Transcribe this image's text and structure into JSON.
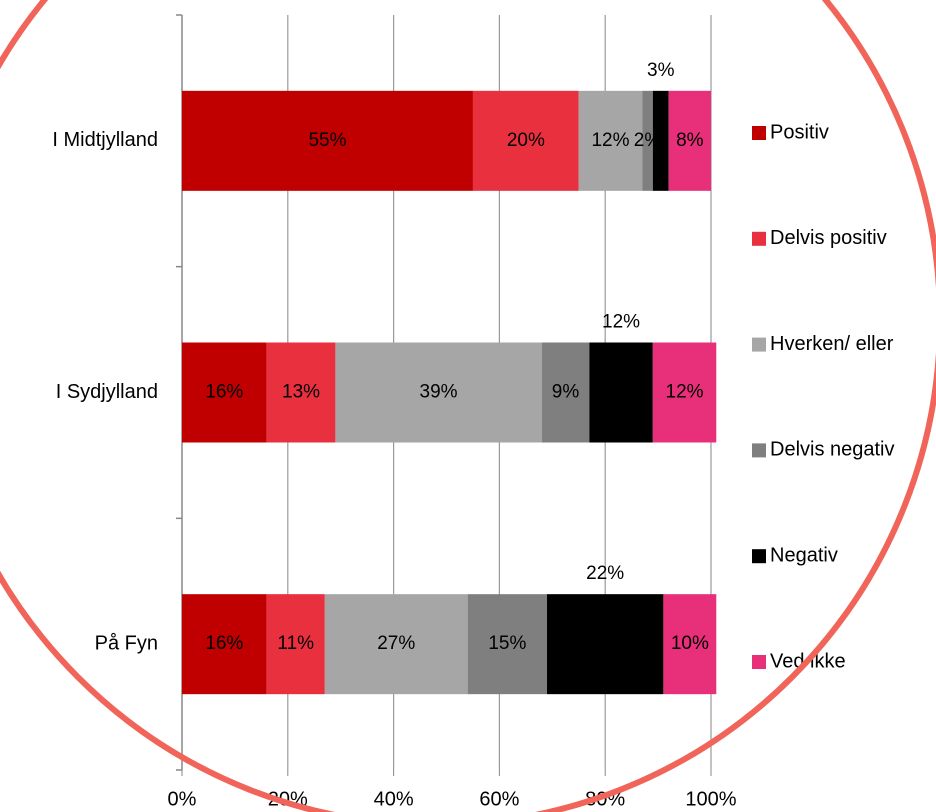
{
  "chart_data": {
    "type": "bar",
    "orientation": "horizontal",
    "stacked": true,
    "categories": [
      "I Midtjylland",
      "I Sydjylland",
      "På Fyn"
    ],
    "series": [
      {
        "name": "Positiv",
        "color": "#c00000",
        "values": [
          55,
          16,
          16
        ],
        "value_labels": [
          "55%",
          "16%",
          "16%"
        ]
      },
      {
        "name": "Delvis positiv",
        "color": "#e8303f",
        "values": [
          20,
          13,
          11
        ],
        "value_labels": [
          "20%",
          "13%",
          "11%"
        ]
      },
      {
        "name": "Hverken/ eller",
        "color": "#a6a6a6",
        "values": [
          12,
          39,
          27
        ],
        "value_labels": [
          "12%",
          "39%",
          "27%"
        ]
      },
      {
        "name": "Delvis negativ",
        "color": "#7f7f7f",
        "values": [
          2,
          9,
          15
        ],
        "value_labels": [
          "2%",
          "9%",
          "15%"
        ]
      },
      {
        "name": "Negativ",
        "color": "#000000",
        "values": [
          3,
          12,
          22
        ],
        "value_labels": [
          "3%",
          "12%",
          "22%"
        ]
      },
      {
        "name": "Ved ikke",
        "color": "#e8307a",
        "values": [
          8,
          12,
          10
        ],
        "value_labels": [
          "8%",
          "12%",
          "10%"
        ]
      }
    ],
    "xlim": [
      0,
      100
    ],
    "xticks": [
      {
        "value": 0,
        "label": "0%"
      },
      {
        "value": 20,
        "label": "20%"
      },
      {
        "value": 40,
        "label": "40%"
      },
      {
        "value": 60,
        "label": "60%"
      },
      {
        "value": 80,
        "label": "80%"
      },
      {
        "value": 100,
        "label": "100%"
      }
    ],
    "grid": true,
    "legend": "right"
  }
}
